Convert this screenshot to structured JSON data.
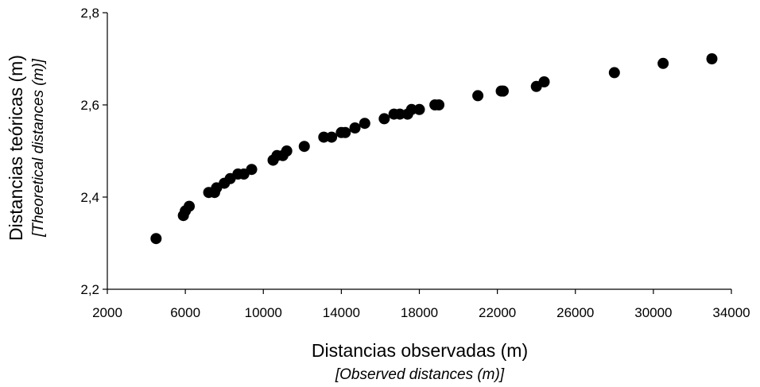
{
  "chart_data": {
    "type": "scatter",
    "title": "",
    "xlabel": "Distancias observadas (m)",
    "xlabel_translation": "[Observed distances (m)]",
    "ylabel": "Distancias teóricas (m)",
    "ylabel_translation": "[Theoretical distances (m)]",
    "xlim": [
      2000,
      34000
    ],
    "ylim": [
      2.2,
      2.8
    ],
    "x_ticks": [
      2000,
      6000,
      10000,
      14000,
      18000,
      22000,
      26000,
      30000,
      34000
    ],
    "x_tick_labels": [
      "2000",
      "6000",
      "10000",
      "14000",
      "18000",
      "22000",
      "26000",
      "30000",
      "34000"
    ],
    "y_ticks": [
      2.2,
      2.4,
      2.6,
      2.8
    ],
    "y_tick_labels": [
      "2,2",
      "2,4",
      "2,6",
      "2,8"
    ],
    "grid": false,
    "legend": false,
    "marker_color": "#000000",
    "points": [
      {
        "x": 4500,
        "y": 2.31
      },
      {
        "x": 5900,
        "y": 2.36
      },
      {
        "x": 6000,
        "y": 2.37
      },
      {
        "x": 6200,
        "y": 2.38
      },
      {
        "x": 7200,
        "y": 2.41
      },
      {
        "x": 7500,
        "y": 2.41
      },
      {
        "x": 7600,
        "y": 2.42
      },
      {
        "x": 8000,
        "y": 2.43
      },
      {
        "x": 8300,
        "y": 2.44
      },
      {
        "x": 8700,
        "y": 2.45
      },
      {
        "x": 9000,
        "y": 2.45
      },
      {
        "x": 9400,
        "y": 2.46
      },
      {
        "x": 10500,
        "y": 2.48
      },
      {
        "x": 10700,
        "y": 2.49
      },
      {
        "x": 11000,
        "y": 2.49
      },
      {
        "x": 11200,
        "y": 2.5
      },
      {
        "x": 12100,
        "y": 2.51
      },
      {
        "x": 13100,
        "y": 2.53
      },
      {
        "x": 13500,
        "y": 2.53
      },
      {
        "x": 14000,
        "y": 2.54
      },
      {
        "x": 14200,
        "y": 2.54
      },
      {
        "x": 14700,
        "y": 2.55
      },
      {
        "x": 15200,
        "y": 2.56
      },
      {
        "x": 16200,
        "y": 2.57
      },
      {
        "x": 16700,
        "y": 2.58
      },
      {
        "x": 17000,
        "y": 2.58
      },
      {
        "x": 17400,
        "y": 2.58
      },
      {
        "x": 17600,
        "y": 2.59
      },
      {
        "x": 18000,
        "y": 2.59
      },
      {
        "x": 18800,
        "y": 2.6
      },
      {
        "x": 19000,
        "y": 2.6
      },
      {
        "x": 21000,
        "y": 2.62
      },
      {
        "x": 22200,
        "y": 2.63
      },
      {
        "x": 22300,
        "y": 2.63
      },
      {
        "x": 24000,
        "y": 2.64
      },
      {
        "x": 24400,
        "y": 2.65
      },
      {
        "x": 28000,
        "y": 2.67
      },
      {
        "x": 30500,
        "y": 2.69
      },
      {
        "x": 33000,
        "y": 2.7
      }
    ]
  }
}
